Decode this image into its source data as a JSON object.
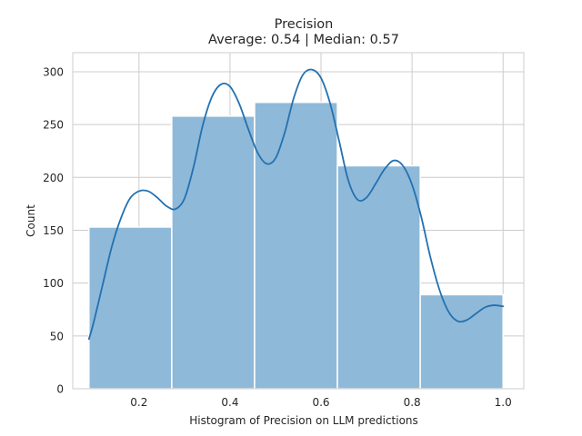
{
  "chart_data": {
    "type": "bar",
    "title": "Precision",
    "subtitle": "Average: 0.54 | Median: 0.57",
    "xlabel": "Histogram of Precision on LLM predictions",
    "ylabel": "Count",
    "xlim": [
      0.0545,
      1.0455
    ],
    "ylim": [
      0,
      318
    ],
    "x_ticks": [
      0.2,
      0.4,
      0.6,
      0.8,
      1.0
    ],
    "x_tick_labels": [
      "0.2",
      "0.4",
      "0.6",
      "0.8",
      "1.0"
    ],
    "y_ticks": [
      0,
      50,
      100,
      150,
      200,
      250,
      300
    ],
    "y_tick_labels": [
      "0",
      "50",
      "100",
      "150",
      "200",
      "250",
      "300"
    ],
    "grid": true,
    "bins": [
      {
        "x0": 0.09,
        "x1": 0.272,
        "count": 153
      },
      {
        "x0": 0.272,
        "x1": 0.454,
        "count": 258
      },
      {
        "x0": 0.454,
        "x1": 0.636,
        "count": 271
      },
      {
        "x0": 0.636,
        "x1": 0.818,
        "count": 211
      },
      {
        "x0": 0.818,
        "x1": 1.0,
        "count": 89
      }
    ],
    "kde": {
      "x": [
        0.09,
        0.1,
        0.12,
        0.14,
        0.16,
        0.18,
        0.2,
        0.22,
        0.24,
        0.26,
        0.28,
        0.3,
        0.32,
        0.34,
        0.36,
        0.38,
        0.4,
        0.42,
        0.44,
        0.46,
        0.48,
        0.5,
        0.52,
        0.54,
        0.56,
        0.58,
        0.6,
        0.62,
        0.64,
        0.66,
        0.68,
        0.7,
        0.72,
        0.74,
        0.76,
        0.78,
        0.8,
        0.82,
        0.84,
        0.86,
        0.88,
        0.9,
        0.92,
        0.94,
        0.96,
        0.98,
        1.0
      ],
      "y": [
        47,
        62,
        98,
        134,
        161,
        180,
        187,
        187,
        181,
        173,
        170,
        180,
        210,
        249,
        276,
        288,
        286,
        270,
        246,
        224,
        213,
        218,
        242,
        275,
        297,
        302,
        294,
        270,
        234,
        197,
        179,
        181,
        194,
        208,
        216,
        211,
        193,
        163,
        125,
        94,
        73,
        64,
        65,
        71,
        77,
        79,
        78
      ]
    },
    "colors": {
      "bar_fill": "#8fb9d8",
      "bar_edge": "#ffffff",
      "kde_line": "#2271b1",
      "grid": "#cccccc",
      "axes_edge": "#cccccc"
    }
  }
}
